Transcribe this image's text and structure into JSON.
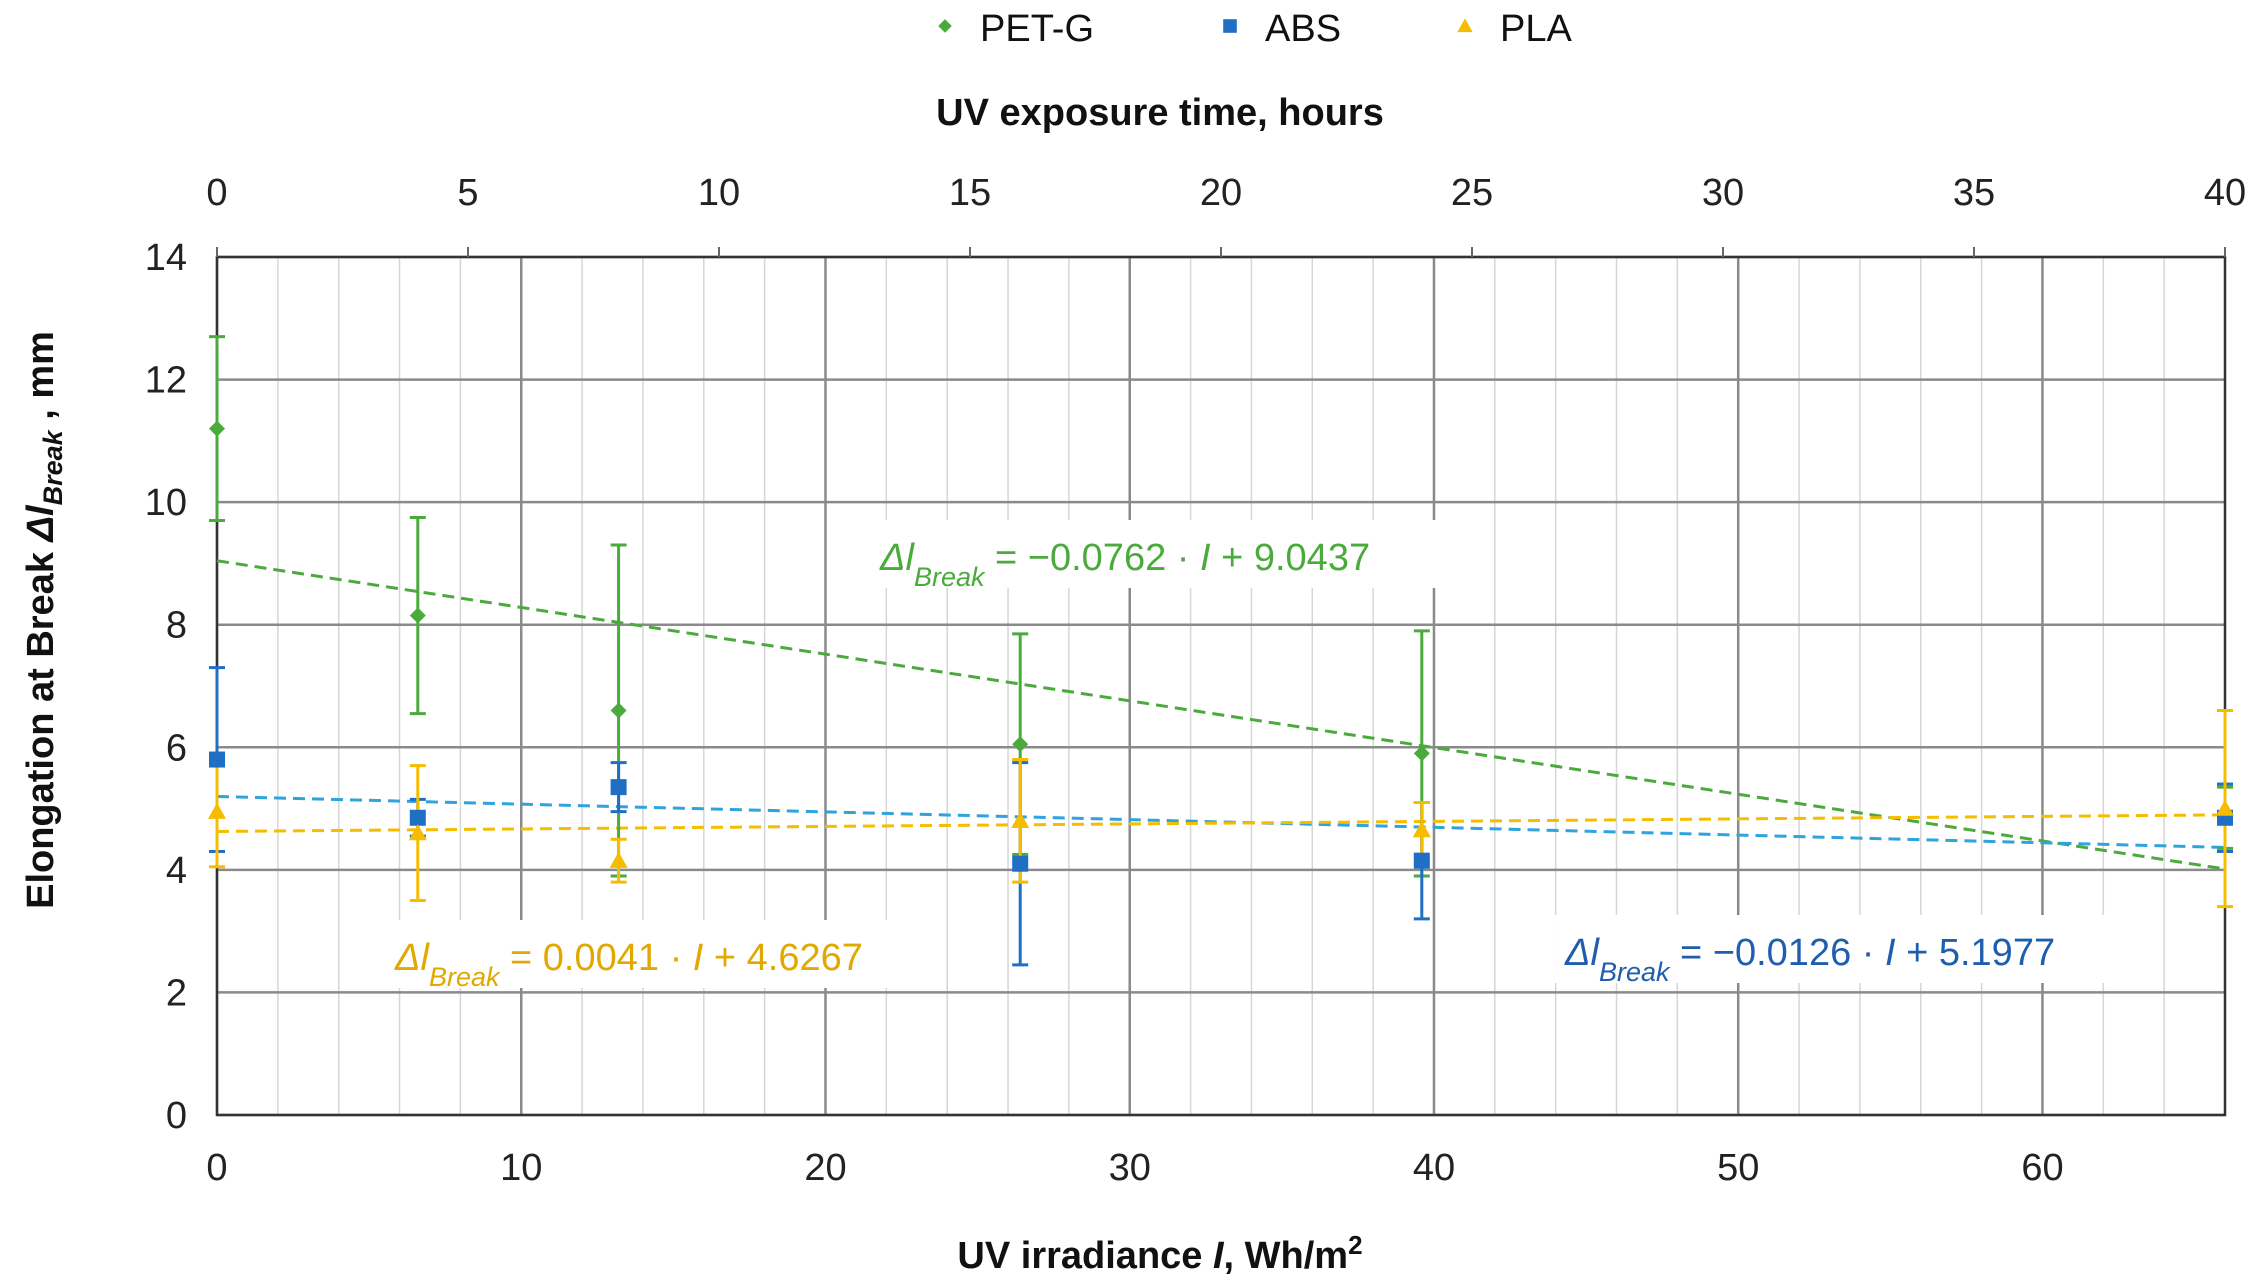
{
  "chart_data": {
    "type": "scatter",
    "xlabel_prefix": "UV irradiance ",
    "xlabel_var": "I",
    "xlabel_unit": ", Wh/m",
    "xlabel_sup": "2",
    "x2label": "UV exposure time, hours",
    "ylabel_prefix": "Elongation at Break ",
    "ylabel_var": "Δl",
    "ylabel_sub": "Break",
    "ylabel_suffix": " , mm",
    "xlim": [
      0,
      66
    ],
    "x2lim": [
      0,
      40
    ],
    "ylim": [
      0,
      14
    ],
    "x_major_ticks": [
      0,
      10,
      20,
      30,
      40,
      50,
      60
    ],
    "x_tick_labels": [
      "0",
      "10",
      "20",
      "30",
      "40",
      "50",
      "60"
    ],
    "x_minor_ticks": [
      2,
      4,
      6,
      8,
      12,
      14,
      16,
      18,
      22,
      24,
      26,
      28,
      32,
      34,
      36,
      38,
      42,
      44,
      46,
      48,
      52,
      54,
      56,
      58,
      62,
      64
    ],
    "x2_major_ticks": [
      0,
      5,
      10,
      15,
      20,
      25,
      30,
      35,
      40
    ],
    "x2_tick_labels": [
      "0",
      "5",
      "10",
      "15",
      "20",
      "25",
      "30",
      "35",
      "40"
    ],
    "y_ticks": [
      0,
      2,
      4,
      6,
      8,
      10,
      12,
      14
    ],
    "y_tick_labels": [
      "0",
      "2",
      "4",
      "6",
      "8",
      "10",
      "12",
      "14"
    ],
    "grid": true,
    "legend_position": "top-center",
    "series": [
      {
        "name": "PET-G",
        "marker": "diamond",
        "color": "#4aaa3c",
        "x": [
          0,
          6.6,
          13.2,
          26.4,
          39.6,
          66
        ],
        "y": [
          11.2,
          8.15,
          6.6,
          6.05,
          5.9,
          4.85
        ],
        "err": [
          1.5,
          1.6,
          2.7,
          1.8,
          2.0,
          0.5
        ],
        "trend": {
          "slope": -0.0762,
          "intercept": 9.0437
        },
        "equation": {
          "lhs": "Δl",
          "sub": "Break",
          "rhs_before": " = −0.0762 · ",
          "rhs_var": "I",
          "rhs_after": " + 9.0437",
          "color": "#4aaa3c",
          "position": "upper-middle"
        }
      },
      {
        "name": "ABS",
        "marker": "square",
        "color": "#1f6fc5",
        "trend_color": "#2ea3dc",
        "x": [
          0,
          6.6,
          13.2,
          26.4,
          39.6,
          66
        ],
        "y": [
          5.8,
          4.85,
          5.35,
          4.1,
          4.15,
          4.85
        ],
        "err": [
          1.5,
          0.3,
          0.4,
          1.65,
          0.95,
          0.55
        ],
        "trend": {
          "slope": -0.0126,
          "intercept": 5.1977
        },
        "equation": {
          "lhs": "Δl",
          "sub": "Break",
          "rhs_before": "  = −0.0126 · ",
          "rhs_var": "I",
          "rhs_after": " + 5.1977",
          "color": "#1f5eae",
          "position": "lower-right"
        }
      },
      {
        "name": "PLA",
        "marker": "triangle",
        "color": "#f5bc00",
        "eq_color": "#e0a800",
        "x": [
          0,
          6.6,
          13.2,
          26.4,
          39.6,
          66
        ],
        "y": [
          4.95,
          4.6,
          4.15,
          4.8,
          4.65,
          5.0
        ],
        "err": [
          0.9,
          1.1,
          0.35,
          1.0,
          0.45,
          1.6
        ],
        "trend": {
          "slope": 0.0041,
          "intercept": 4.6267
        },
        "equation": {
          "lhs": "Δl",
          "sub": "Break",
          "rhs_before": " = 0.0041 · ",
          "rhs_var": "I",
          "rhs_after": " + 4.6267",
          "color": "#e0a800",
          "position": "lower-left"
        }
      }
    ]
  }
}
